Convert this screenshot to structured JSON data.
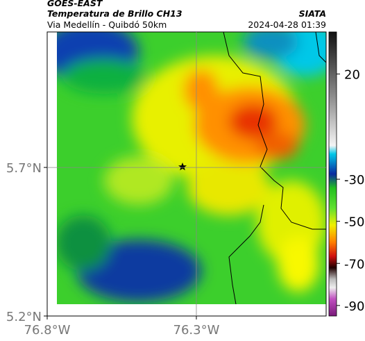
{
  "header": {
    "source": "GOES-EAST",
    "title": "Temperatura de Brillo CH13",
    "subtitle": "Via Medellín - Quibdó 50km",
    "agency": "SIATA",
    "timestamp": "2024-04-28 01:39"
  },
  "map": {
    "xlim": [
      -76.8,
      -75.865
    ],
    "ylim": [
      5.2,
      6.156
    ],
    "xticks": [
      {
        "value": -76.8,
        "label": "76.8°W"
      },
      {
        "value": -76.3,
        "label": "76.3°W"
      }
    ],
    "yticks": [
      {
        "value": 5.2,
        "label": "5.2°N"
      },
      {
        "value": 5.7,
        "label": "5.7°N"
      }
    ]
  },
  "colorbar": {
    "lim": [
      -95,
      40
    ],
    "ticks": [
      20,
      -30,
      -50,
      -70,
      -90
    ]
  }
}
